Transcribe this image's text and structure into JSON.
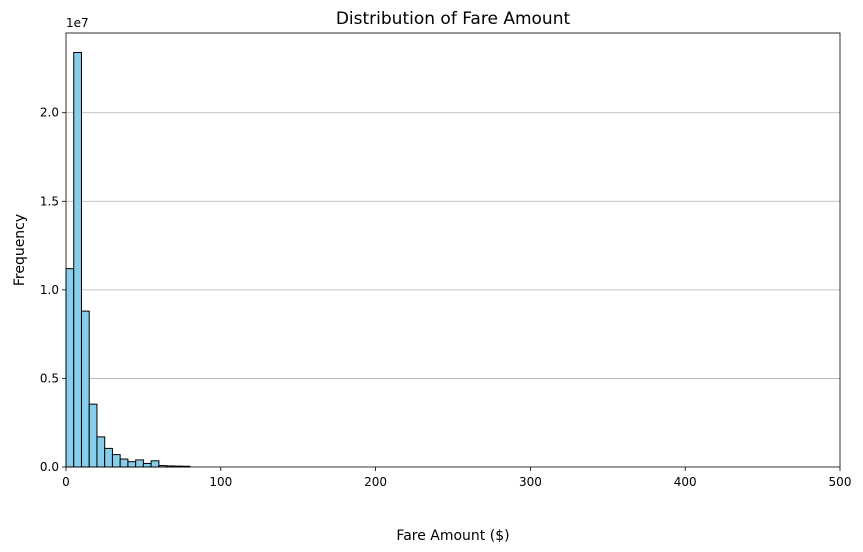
{
  "chart_data": {
    "type": "bar",
    "title": "Distribution of Fare Amount",
    "xlabel": "Fare Amount ($)",
    "ylabel": "Frequency",
    "y_offset_label": "1e7",
    "y_scale": 10000000,
    "xlim": [
      0,
      500
    ],
    "ylim": [
      0,
      2.45
    ],
    "x_ticks": [
      0,
      100,
      200,
      300,
      400,
      500
    ],
    "x_tick_labels": [
      "0",
      "100",
      "200",
      "300",
      "400",
      "500"
    ],
    "y_ticks": [
      0,
      0.5,
      1.0,
      1.5,
      2.0
    ],
    "y_tick_labels": [
      "0.0",
      "0.5",
      "1.0",
      "1.5",
      "2.0"
    ],
    "grid": "y-axis",
    "bin_width": 5,
    "bin_starts": [
      0,
      5,
      10,
      15,
      20,
      25,
      30,
      35,
      40,
      45,
      50,
      55,
      60,
      65,
      70,
      75
    ],
    "values": [
      1.12,
      2.34,
      0.88,
      0.355,
      0.17,
      0.105,
      0.07,
      0.045,
      0.03,
      0.04,
      0.02,
      0.035,
      0.008,
      0.006,
      0.005,
      0.004
    ],
    "bar_color": "#87ceeb",
    "edge_color": "#000000",
    "grid_color": "#b0b0b0"
  }
}
